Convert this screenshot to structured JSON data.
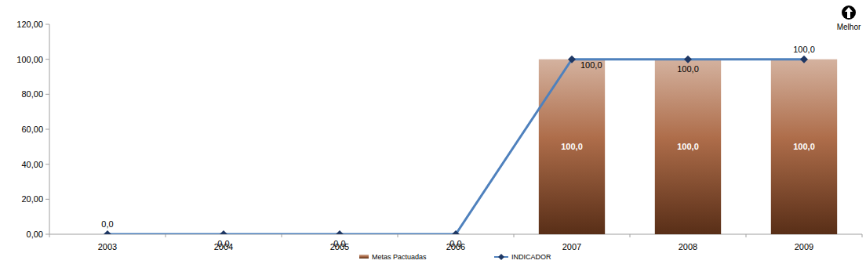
{
  "chart_data": {
    "type": "bar",
    "annotation": "Melhor",
    "categories": [
      "2003",
      "2004",
      "2005",
      "2006",
      "2007",
      "2008",
      "2009"
    ],
    "ylim": [
      0,
      120
    ],
    "yticks": [
      {
        "value": 0,
        "label": "0,00"
      },
      {
        "value": 20,
        "label": "20,00"
      },
      {
        "value": 40,
        "label": "40,00"
      },
      {
        "value": 60,
        "label": "60,00"
      },
      {
        "value": 80,
        "label": "80,00"
      },
      {
        "value": 100,
        "label": "100,00"
      },
      {
        "value": 120,
        "label": "120,00"
      }
    ],
    "grid": false,
    "legend": "bottom",
    "data_labels": true,
    "series": [
      {
        "name": "Metas Pactuadas",
        "type": "bar",
        "color": "#a0532a",
        "values": [
          null,
          null,
          null,
          null,
          100,
          100,
          100
        ],
        "value_labels": [
          null,
          null,
          null,
          null,
          "100,0",
          "100,0",
          "100,0"
        ]
      },
      {
        "name": "INDICADOR",
        "type": "line",
        "color": "#4f81bd",
        "marker": "diamond",
        "values": [
          0,
          0,
          0,
          0,
          100,
          100,
          100
        ],
        "value_labels": [
          "0,0",
          "0,0",
          "0,0",
          "0,0",
          "100,0",
          "100,0",
          "100,0"
        ]
      }
    ]
  }
}
